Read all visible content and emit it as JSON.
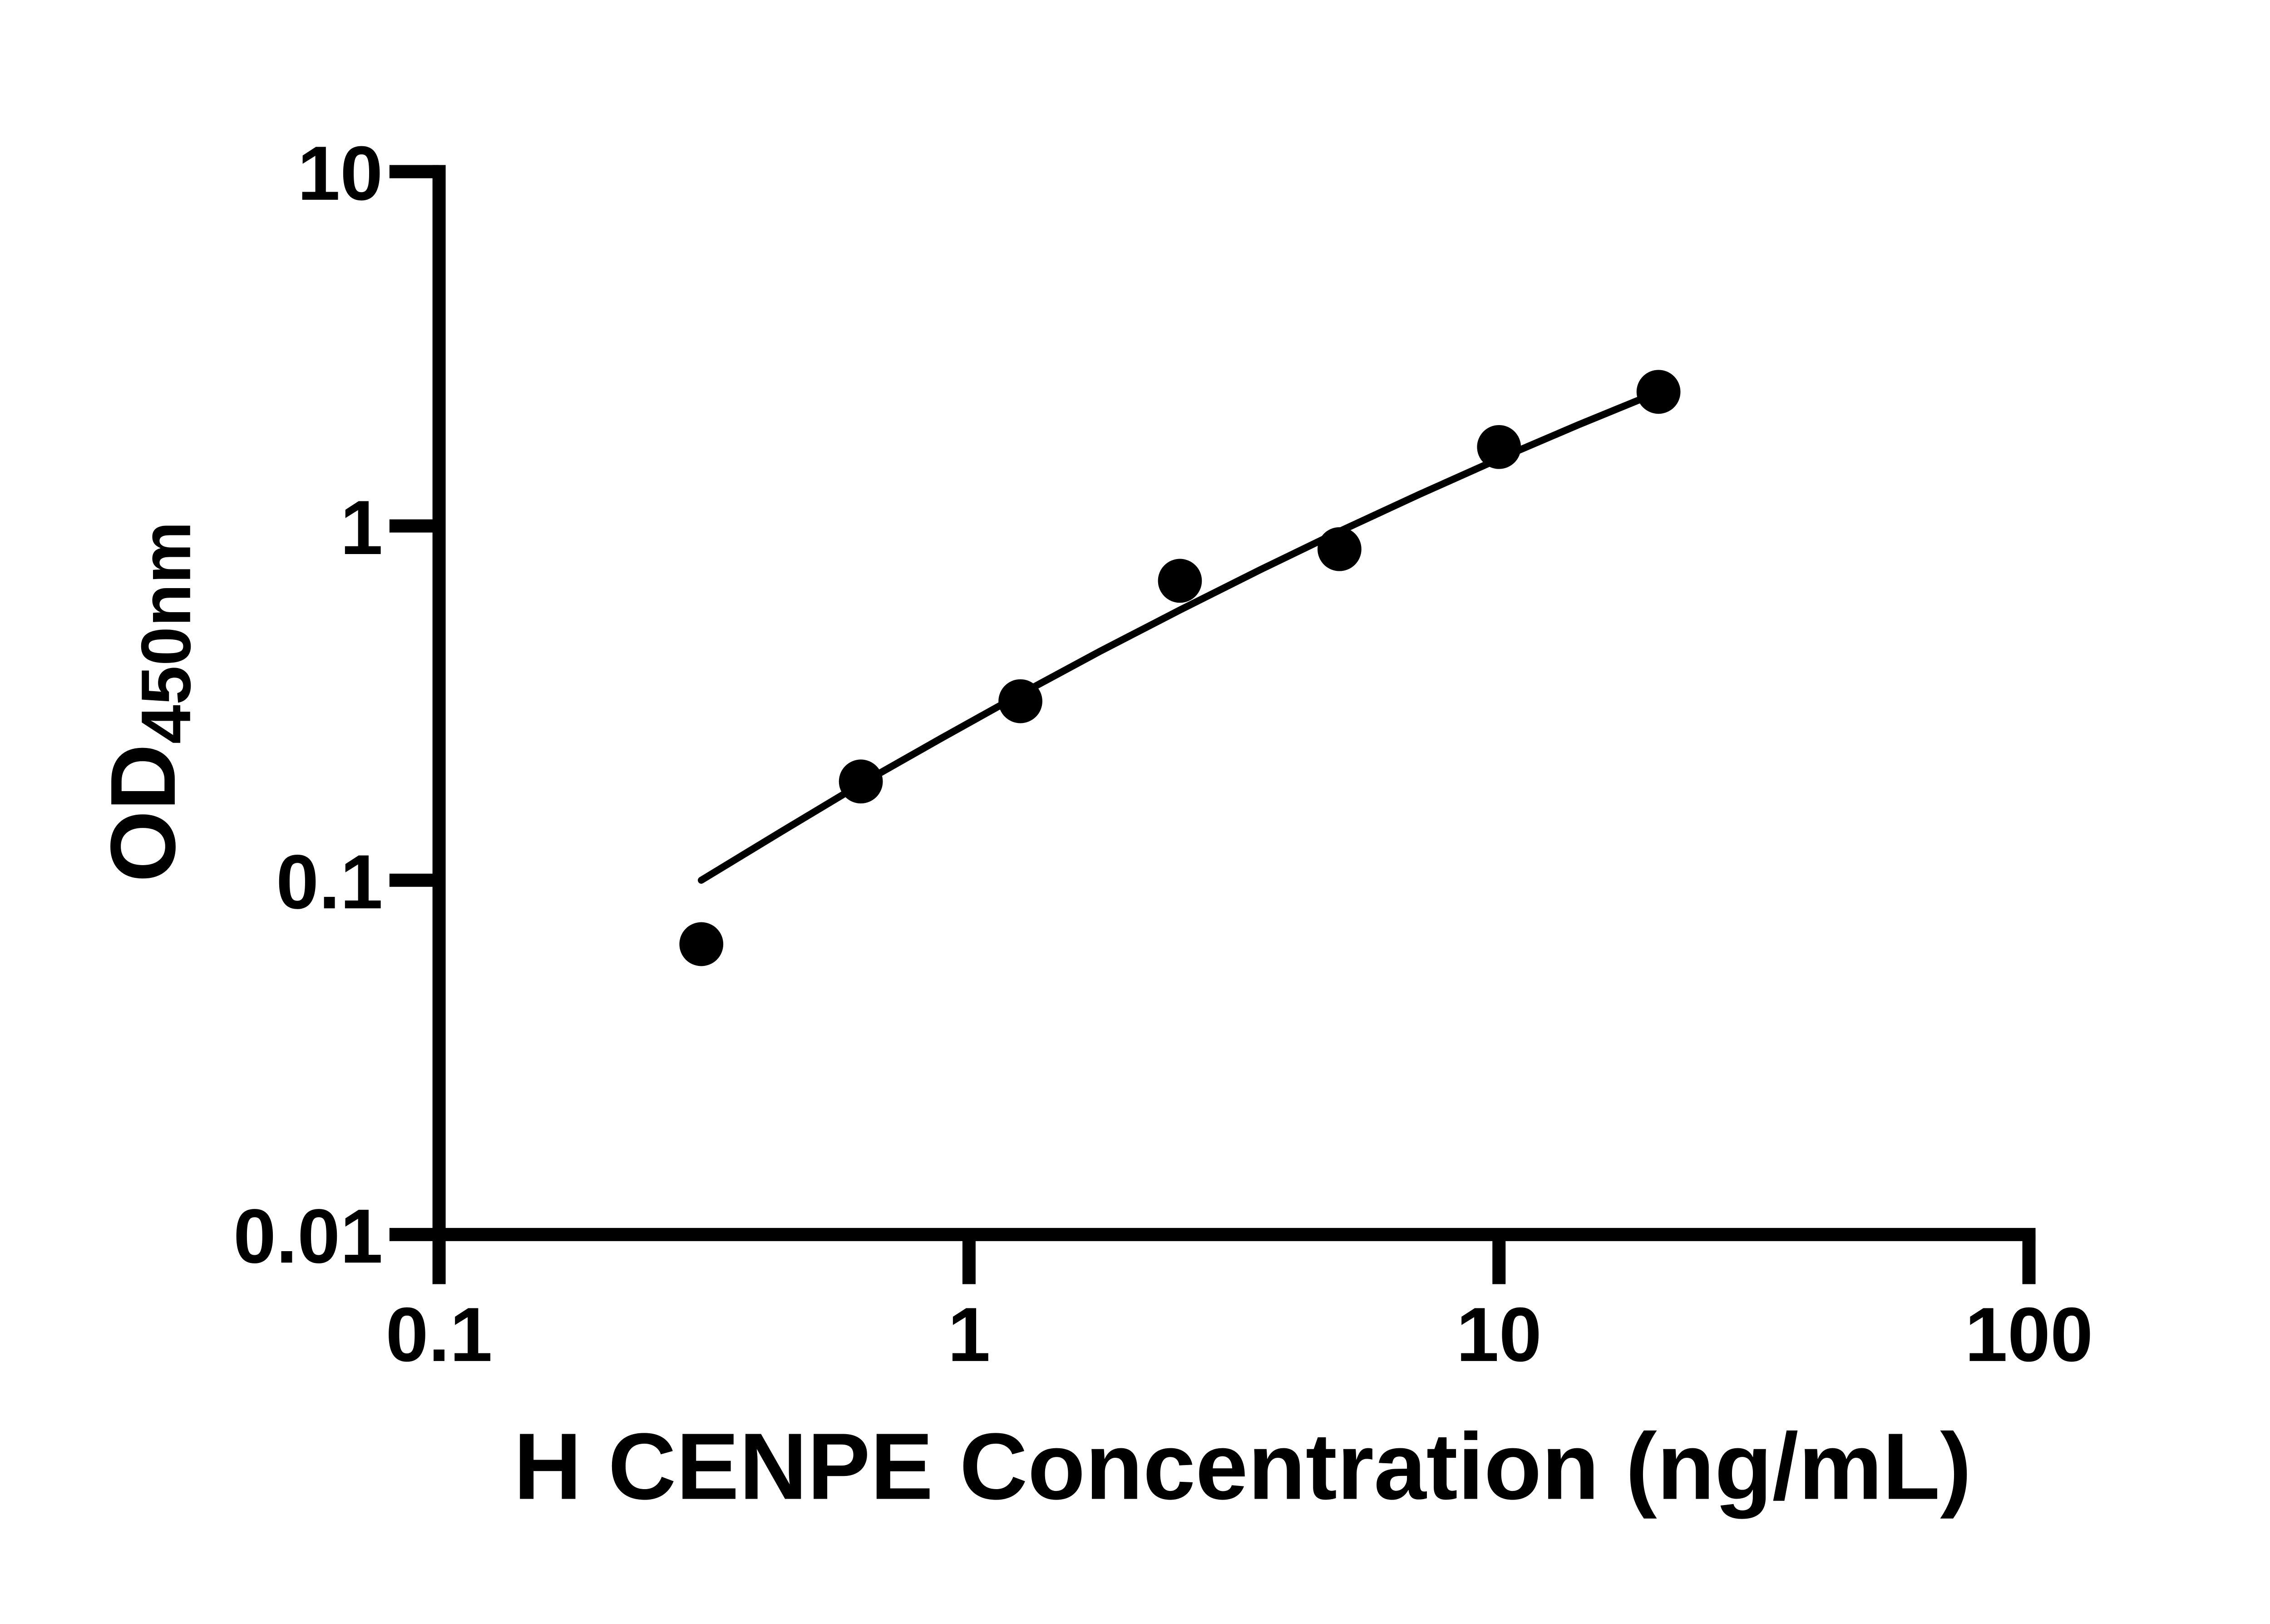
{
  "page": {
    "background_color": "#ffffff",
    "foreground_color": "#000000"
  },
  "chart_data": {
    "type": "scatter",
    "title": "",
    "xlabel": "H CENPE Concentration (ng/mL)",
    "ylabel_main": "OD",
    "ylabel_sub": "450nm",
    "x_scale": "log",
    "y_scale": "log",
    "xlim": [
      0.1,
      100
    ],
    "ylim": [
      0.01,
      10
    ],
    "grid": false,
    "legend": "none",
    "x_ticks": [
      {
        "value": 0.1,
        "label": "0.1"
      },
      {
        "value": 1,
        "label": "1"
      },
      {
        "value": 10,
        "label": "10"
      },
      {
        "value": 100,
        "label": "100"
      }
    ],
    "y_ticks": [
      {
        "value": 0.01,
        "label": "0.01"
      },
      {
        "value": 0.1,
        "label": "0.1"
      },
      {
        "value": 1,
        "label": "1"
      },
      {
        "value": 10,
        "label": "10"
      }
    ],
    "series": [
      {
        "name": "standard-curve-points",
        "marker": "filled-circle",
        "color": "#000000",
        "points": [
          {
            "x": 0.3125,
            "y": 0.066
          },
          {
            "x": 0.625,
            "y": 0.19
          },
          {
            "x": 1.25,
            "y": 0.32
          },
          {
            "x": 2.5,
            "y": 0.7
          },
          {
            "x": 5,
            "y": 0.86
          },
          {
            "x": 10,
            "y": 1.67
          },
          {
            "x": 20,
            "y": 2.39
          }
        ]
      }
    ],
    "trend_line": {
      "name": "fitted-curve",
      "color": "#000000",
      "points": [
        [
          0.3125,
          0.1
        ],
        [
          0.442,
          0.137
        ],
        [
          0.625,
          0.187
        ],
        [
          0.884,
          0.251
        ],
        [
          1.25,
          0.335
        ],
        [
          1.768,
          0.443
        ],
        [
          2.5,
          0.579
        ],
        [
          3.536,
          0.751
        ],
        [
          5.0,
          0.965
        ],
        [
          7.071,
          1.227
        ],
        [
          10.0,
          1.547
        ],
        [
          14.14,
          1.931
        ],
        [
          20.0,
          2.388
        ]
      ]
    }
  }
}
